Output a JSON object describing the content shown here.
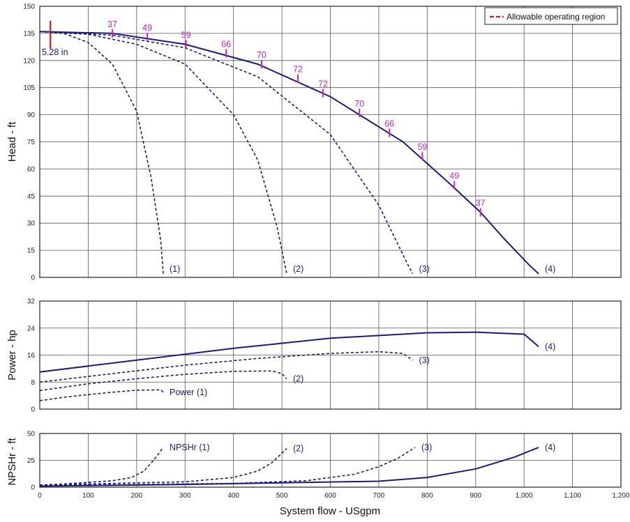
{
  "colors": {
    "curve": "#1a1a80",
    "efficiency": "#cc22cc",
    "allowable": "#e0141e",
    "grid": "#555555",
    "frame": "#222222"
  },
  "legend": {
    "label": "Allowable operating region",
    "position": "top-right"
  },
  "trim_label": "5.28 in",
  "xlabel": "System flow - USgpm",
  "x_ticks": [
    "0",
    "100",
    "200",
    "300",
    "400",
    "500",
    "600",
    "700",
    "800",
    "900",
    "1,000",
    "1,100",
    "1,200"
  ],
  "chart_data": [
    {
      "type": "line",
      "ylabel": "Head - ft",
      "xlabel": "System flow - USgpm",
      "xlim": [
        0,
        1200
      ],
      "ylim": [
        0,
        150
      ],
      "y_ticks": [
        "0",
        "15",
        "30",
        "45",
        "60",
        "75",
        "90",
        "105",
        "120",
        "135",
        "150"
      ],
      "grid": true,
      "series": [
        {
          "label": "(1)",
          "style": "dashed",
          "points": [
            [
              0,
              136
            ],
            [
              50,
              135
            ],
            [
              100,
              130
            ],
            [
              150,
              118
            ],
            [
              200,
              92
            ],
            [
              230,
              55
            ],
            [
              250,
              20
            ],
            [
              255,
              2
            ]
          ]
        },
        {
          "label": "(2)",
          "style": "dashed",
          "points": [
            [
              0,
              136
            ],
            [
              100,
              134.5
            ],
            [
              200,
              129
            ],
            [
              300,
              118
            ],
            [
              400,
              90
            ],
            [
              450,
              65
            ],
            [
              490,
              28
            ],
            [
              510,
              2
            ]
          ]
        },
        {
          "label": "(3)",
          "style": "dashed",
          "points": [
            [
              0,
              136
            ],
            [
              150,
              134
            ],
            [
              300,
              127
            ],
            [
              450,
              111
            ],
            [
              600,
              79
            ],
            [
              700,
              40
            ],
            [
              760,
              7
            ],
            [
              770,
              2
            ]
          ]
        },
        {
          "label": "(4)",
          "style": "solid",
          "points": [
            [
              0,
              136
            ],
            [
              150,
              135
            ],
            [
              300,
              129
            ],
            [
              450,
              118
            ],
            [
              600,
              100
            ],
            [
              750,
              75
            ],
            [
              850,
              51
            ],
            [
              910,
              36
            ],
            [
              960,
              21
            ],
            [
              1010,
              7
            ],
            [
              1030,
              2
            ]
          ]
        }
      ],
      "efficiency_marks": [
        {
          "x": 150,
          "y": 135,
          "label": "37"
        },
        {
          "x": 222,
          "y": 133,
          "label": "49"
        },
        {
          "x": 302,
          "y": 129,
          "label": "59"
        },
        {
          "x": 385,
          "y": 124,
          "label": "66"
        },
        {
          "x": 458,
          "y": 118,
          "label": "70"
        },
        {
          "x": 533,
          "y": 110,
          "label": "72"
        },
        {
          "x": 585,
          "y": 102,
          "label": "72"
        },
        {
          "x": 660,
          "y": 91,
          "label": "70"
        },
        {
          "x": 722,
          "y": 80,
          "label": "66"
        },
        {
          "x": 790,
          "y": 67,
          "label": "59"
        },
        {
          "x": 856,
          "y": 51,
          "label": "49"
        },
        {
          "x": 910,
          "y": 36,
          "label": "37"
        }
      ],
      "allowable_region": {
        "x": 22,
        "y_range": [
          130,
          142
        ]
      }
    },
    {
      "type": "line",
      "ylabel": "Power - hp",
      "xlim": [
        0,
        1200
      ],
      "ylim": [
        0,
        32
      ],
      "y_ticks": [
        "0",
        "8",
        "16",
        "24",
        "32"
      ],
      "grid": true,
      "series": [
        {
          "label": "Power (1)",
          "style": "dashed",
          "points": [
            [
              0,
              2.5
            ],
            [
              50,
              3.5
            ],
            [
              100,
              4.3
            ],
            [
              150,
              5
            ],
            [
              200,
              5.6
            ],
            [
              250,
              5.7
            ],
            [
              255,
              5
            ]
          ]
        },
        {
          "label": "(2)",
          "style": "dashed",
          "points": [
            [
              0,
              5.5
            ],
            [
              100,
              7.5
            ],
            [
              200,
              9
            ],
            [
              300,
              10.3
            ],
            [
              400,
              11.2
            ],
            [
              480,
              11.3
            ],
            [
              500,
              10.5
            ],
            [
              510,
              9
            ]
          ]
        },
        {
          "label": "(3)",
          "style": "dashed",
          "points": [
            [
              0,
              8
            ],
            [
              150,
              10.5
            ],
            [
              300,
              13
            ],
            [
              450,
              15
            ],
            [
              600,
              16.5
            ],
            [
              700,
              17
            ],
            [
              750,
              16.5
            ],
            [
              770,
              14.5
            ]
          ]
        },
        {
          "label": "(4)",
          "style": "solid",
          "points": [
            [
              0,
              11
            ],
            [
              200,
              14.5
            ],
            [
              400,
              18
            ],
            [
              600,
              21
            ],
            [
              800,
              22.6
            ],
            [
              900,
              22.8
            ],
            [
              1000,
              22.2
            ],
            [
              1010,
              21
            ],
            [
              1030,
              18.5
            ]
          ]
        }
      ]
    },
    {
      "type": "line",
      "ylabel": "NPSHr - ft",
      "xlim": [
        0,
        1200
      ],
      "ylim": [
        0,
        50
      ],
      "y_ticks": [
        "0",
        "25",
        "50"
      ],
      "grid": true,
      "series": [
        {
          "label": "NPSHr (1)",
          "style": "dashed",
          "points": [
            [
              0,
              2
            ],
            [
              50,
              3
            ],
            [
              100,
              4.5
            ],
            [
              150,
              6
            ],
            [
              190,
              9
            ],
            [
              215,
              15
            ],
            [
              235,
              25
            ],
            [
              255,
              37
            ]
          ]
        },
        {
          "label": "(2)",
          "style": "dashed",
          "points": [
            [
              0,
              2
            ],
            [
              100,
              3
            ],
            [
              200,
              4
            ],
            [
              300,
              5
            ],
            [
              400,
              9
            ],
            [
              450,
              15
            ],
            [
              480,
              23
            ],
            [
              510,
              36
            ]
          ]
        },
        {
          "label": "(3)",
          "style": "dashed",
          "points": [
            [
              0,
              1.5
            ],
            [
              200,
              2.5
            ],
            [
              400,
              3.5
            ],
            [
              550,
              6
            ],
            [
              650,
              12
            ],
            [
              700,
              19
            ],
            [
              740,
              27
            ],
            [
              775,
              37
            ]
          ]
        },
        {
          "label": "(4)",
          "style": "solid",
          "points": [
            [
              0,
              1
            ],
            [
              300,
              2.5
            ],
            [
              500,
              4
            ],
            [
              700,
              5.5
            ],
            [
              800,
              9
            ],
            [
              900,
              17
            ],
            [
              980,
              28
            ],
            [
              1030,
              37
            ]
          ]
        }
      ]
    }
  ]
}
